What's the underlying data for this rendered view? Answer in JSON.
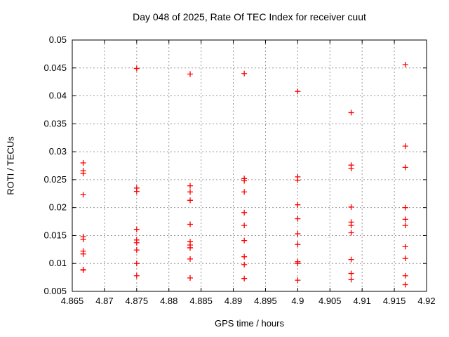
{
  "window": {
    "background": "#ffffff"
  },
  "chart_data": {
    "type": "scatter",
    "title": "Day 048 of 2025, Rate Of TEC Index for receiver cuut",
    "xlabel": "GPS time / hours",
    "ylabel": "ROTI / TECUs",
    "xlim": [
      4.865,
      4.92
    ],
    "ylim": [
      0.005,
      0.05
    ],
    "xtick_labels": [
      "4.865",
      "4.87",
      "4.875",
      "4.88",
      "4.885",
      "4.89",
      "4.895",
      "4.9",
      "4.905",
      "4.91",
      "4.915",
      "4.92"
    ],
    "ytick_labels": [
      "0.005",
      "0.01",
      "0.015",
      "0.02",
      "0.025",
      "0.03",
      "0.035",
      "0.04",
      "0.045",
      "0.05"
    ],
    "grid": true,
    "legend": "none",
    "marker": {
      "shape": "plus",
      "color": "#ff0000",
      "size": 8
    },
    "grid_color": "#989898",
    "axis_color": "#000000",
    "series": [
      {
        "name": "ROTI",
        "points": [
          [
            4.8667,
            0.028
          ],
          [
            4.8667,
            0.0266
          ],
          [
            4.8667,
            0.0261
          ],
          [
            4.8667,
            0.0223
          ],
          [
            4.8667,
            0.0148
          ],
          [
            4.8667,
            0.0143
          ],
          [
            4.8667,
            0.0122
          ],
          [
            4.8667,
            0.0117
          ],
          [
            4.8667,
            0.0089
          ],
          [
            4.8667,
            0.0088
          ],
          [
            4.875,
            0.0449
          ],
          [
            4.875,
            0.0235
          ],
          [
            4.875,
            0.0229
          ],
          [
            4.875,
            0.0161
          ],
          [
            4.875,
            0.0142
          ],
          [
            4.875,
            0.0137
          ],
          [
            4.875,
            0.0124
          ],
          [
            4.875,
            0.01
          ],
          [
            4.875,
            0.0078
          ],
          [
            4.8833,
            0.0439
          ],
          [
            4.8833,
            0.0239
          ],
          [
            4.8833,
            0.0228
          ],
          [
            4.8833,
            0.0213
          ],
          [
            4.8833,
            0.017
          ],
          [
            4.8833,
            0.0139
          ],
          [
            4.8833,
            0.0133
          ],
          [
            4.8833,
            0.0128
          ],
          [
            4.8833,
            0.0108
          ],
          [
            4.8833,
            0.0074
          ],
          [
            4.8917,
            0.044
          ],
          [
            4.8917,
            0.0252
          ],
          [
            4.8917,
            0.0248
          ],
          [
            4.8917,
            0.0228
          ],
          [
            4.8917,
            0.0191
          ],
          [
            4.8917,
            0.0168
          ],
          [
            4.8917,
            0.0141
          ],
          [
            4.8917,
            0.0112
          ],
          [
            4.8917,
            0.0098
          ],
          [
            4.8917,
            0.0073
          ],
          [
            4.9,
            0.0408
          ],
          [
            4.9,
            0.0255
          ],
          [
            4.9,
            0.0249
          ],
          [
            4.9,
            0.0205
          ],
          [
            4.9,
            0.018
          ],
          [
            4.9,
            0.0153
          ],
          [
            4.9,
            0.0134
          ],
          [
            4.9,
            0.0103
          ],
          [
            4.9,
            0.01
          ],
          [
            4.9,
            0.007
          ],
          [
            4.9083,
            0.037
          ],
          [
            4.9083,
            0.0276
          ],
          [
            4.9083,
            0.027
          ],
          [
            4.9083,
            0.0201
          ],
          [
            4.9083,
            0.0174
          ],
          [
            4.9083,
            0.0168
          ],
          [
            4.9083,
            0.0155
          ],
          [
            4.9083,
            0.0107
          ],
          [
            4.9083,
            0.0082
          ],
          [
            4.9083,
            0.0071
          ],
          [
            4.9167,
            0.0456
          ],
          [
            4.9167,
            0.031
          ],
          [
            4.9167,
            0.0272
          ],
          [
            4.9167,
            0.02
          ],
          [
            4.9167,
            0.0179
          ],
          [
            4.9167,
            0.0168
          ],
          [
            4.9167,
            0.013
          ],
          [
            4.9167,
            0.0109
          ],
          [
            4.9167,
            0.0078
          ],
          [
            4.9167,
            0.0062
          ]
        ]
      }
    ]
  }
}
